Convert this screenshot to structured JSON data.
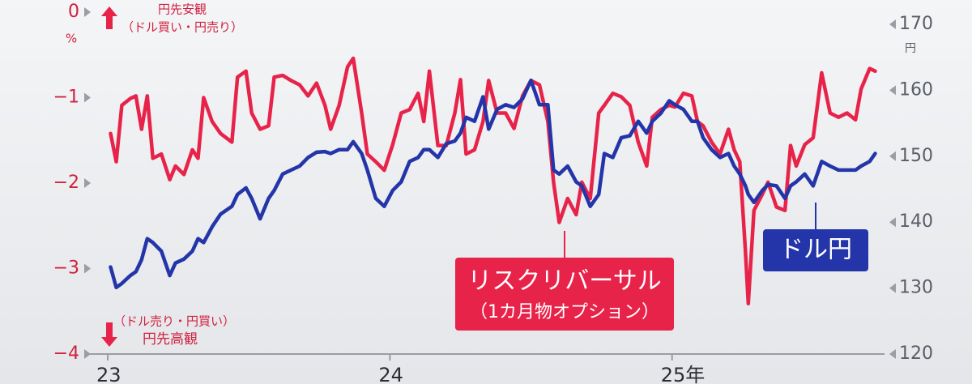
{
  "chart_data": {
    "type": "line",
    "ylabel": "%",
    "y2label": "円",
    "annotations": {
      "yen_weak": "円先安観",
      "yen_weak_note": "（ドル買い・円売り）",
      "yen_strong_note": "（ドル売り・円買い）",
      "yen_strong": "円先高観",
      "rr_note": "（1カ月物オプション）"
    },
    "xlim": [
      2023,
      2025.75
    ],
    "xticks": [
      {
        "value": 2023,
        "label": "23"
      },
      {
        "value": 2024,
        "label": "24"
      },
      {
        "value": 2025,
        "label": "25年"
      }
    ],
    "ylim": [
      -4,
      0
    ],
    "yticks": [
      0,
      {
        "value": -1,
        "label": "−1"
      },
      {
        "value": -2,
        "label": "−2"
      },
      {
        "value": -3,
        "label": "−3"
      },
      {
        "value": -4,
        "label": "−4"
      }
    ],
    "y2lim": [
      120,
      170
    ],
    "y2ticks": [
      170,
      160,
      150,
      140,
      130,
      120
    ],
    "x": [
      2023.01,
      2023.03,
      2023.05,
      2023.08,
      2023.1,
      2023.12,
      2023.14,
      2023.16,
      2023.19,
      2023.22,
      2023.24,
      2023.27,
      2023.3,
      2023.32,
      2023.34,
      2023.37,
      2023.4,
      2023.44,
      2023.46,
      2023.49,
      2023.51,
      2023.54,
      2023.57,
      2023.59,
      2023.62,
      2023.65,
      2023.68,
      2023.71,
      2023.74,
      2023.77,
      2023.79,
      2023.82,
      2023.85,
      2023.87,
      2023.9,
      2023.92,
      2023.95,
      2023.98,
      2024.01,
      2024.04,
      2024.07,
      2024.1,
      2024.12,
      2024.14,
      2024.17,
      2024.2,
      2024.23,
      2024.25,
      2024.27,
      2024.3,
      2024.33,
      2024.35,
      2024.38,
      2024.41,
      2024.44,
      2024.47,
      2024.5,
      2024.53,
      2024.56,
      2024.58,
      2024.6,
      2024.63,
      2024.66,
      2024.68,
      2024.71,
      2024.74,
      2024.76,
      2024.79,
      2024.82,
      2024.85,
      2024.88,
      2024.91,
      2024.93,
      2024.96,
      2024.99,
      2025.01,
      2025.04,
      2025.07,
      2025.09,
      2025.11,
      2025.14,
      2025.17,
      2025.2,
      2025.22,
      2025.24,
      2025.26,
      2025.27,
      2025.29,
      2025.32,
      2025.34,
      2025.37,
      2025.4,
      2025.42,
      2025.44,
      2025.47,
      2025.5,
      2025.53,
      2025.56,
      2025.59,
      2025.62,
      2025.65,
      2025.67,
      2025.7,
      2025.72
    ],
    "series": [
      {
        "name": "リスクリバーサル",
        "color": "#e8234a",
        "values": [
          -1.42,
          -1.75,
          -1.09,
          -1.01,
          -0.98,
          -1.37,
          -0.98,
          -1.71,
          -1.66,
          -1.96,
          -1.8,
          -1.9,
          -1.61,
          -1.71,
          -1.0,
          -1.28,
          -1.42,
          -1.52,
          -0.76,
          -0.69,
          -1.18,
          -1.37,
          -1.33,
          -0.76,
          -0.74,
          -0.8,
          -0.85,
          -0.98,
          -0.83,
          -1.09,
          -1.37,
          -1.09,
          -0.64,
          -0.54,
          -1.18,
          -1.66,
          -1.75,
          -1.85,
          -1.55,
          -1.18,
          -1.14,
          -0.95,
          -1.28,
          -0.69,
          -1.56,
          -1.56,
          -1.18,
          -0.79,
          -1.66,
          -1.61,
          -1.28,
          -0.8,
          -1.18,
          -1.18,
          -1.36,
          -0.98,
          -0.8,
          -0.85,
          -1.28,
          -1.99,
          -2.46,
          -2.18,
          -2.37,
          -1.99,
          -2.18,
          -1.18,
          -1.09,
          -0.95,
          -0.99,
          -1.09,
          -1.52,
          -1.8,
          -1.23,
          -1.14,
          -1.09,
          -1.11,
          -0.95,
          -0.98,
          -1.28,
          -1.33,
          -1.52,
          -1.66,
          -1.37,
          -1.61,
          -1.75,
          -2.8,
          -3.41,
          -2.32,
          -2.13,
          -1.99,
          -2.28,
          -2.32,
          -1.56,
          -1.8,
          -1.55,
          -1.47,
          -0.71,
          -1.18,
          -1.23,
          -1.18,
          -1.26,
          -0.9,
          -0.66,
          -0.69
        ]
      },
      {
        "name": "ドル円",
        "color": "#2335a8",
        "axis": "y2",
        "values": [
          133.2,
          130.1,
          130.7,
          131.9,
          132.5,
          134.3,
          137.5,
          136.9,
          135.6,
          131.9,
          133.8,
          134.4,
          135.6,
          137.5,
          136.9,
          139.3,
          141.2,
          142.4,
          144.2,
          145.2,
          143.6,
          140.5,
          143.6,
          144.8,
          147.3,
          147.9,
          148.5,
          149.8,
          150.6,
          150.7,
          150.4,
          151.0,
          151.0,
          152.2,
          150.4,
          147.9,
          143.6,
          142.4,
          144.8,
          146.1,
          149.2,
          149.8,
          151.0,
          151.0,
          149.8,
          151.9,
          152.3,
          153.5,
          155.9,
          155.3,
          159.0,
          154.1,
          157.1,
          157.8,
          157.4,
          158.7,
          161.5,
          157.8,
          157.8,
          147.9,
          147.3,
          148.5,
          146.1,
          145.5,
          142.4,
          144.2,
          150.4,
          149.8,
          152.8,
          153.1,
          155.3,
          153.5,
          155.3,
          156.5,
          158.4,
          157.8,
          157.1,
          155.3,
          155.3,
          152.8,
          151.0,
          149.8,
          150.4,
          148.5,
          147.3,
          145.5,
          144.2,
          143.0,
          144.8,
          145.7,
          145.5,
          143.6,
          145.5,
          146.1,
          147.3,
          145.5,
          149.2,
          148.5,
          147.9,
          147.9,
          147.9,
          148.5,
          149.2,
          150.4
        ]
      }
    ]
  }
}
